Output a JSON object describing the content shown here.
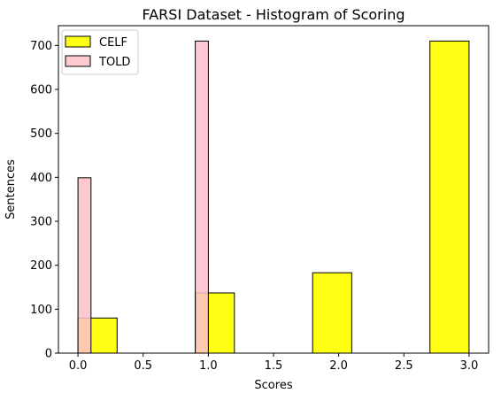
{
  "chart_data": {
    "type": "bar",
    "title": "FARSI Dataset - Histogram of Scoring",
    "xlabel": "Scores",
    "ylabel": "Sentences",
    "xlim": [
      -0.15,
      3.15
    ],
    "ylim": [
      0,
      745
    ],
    "xticks": [
      0.0,
      0.5,
      1.0,
      1.5,
      2.0,
      2.5,
      3.0
    ],
    "xtick_labels": [
      "0.0",
      "0.5",
      "1.0",
      "1.5",
      "2.0",
      "2.5",
      "3.0"
    ],
    "yticks": [
      0,
      100,
      200,
      300,
      400,
      500,
      600,
      700
    ],
    "ytick_labels": [
      "0",
      "100",
      "200",
      "300",
      "400",
      "500",
      "600",
      "700"
    ],
    "grid": false,
    "legend_position": "top-left",
    "series": [
      {
        "name": "CELF",
        "color": "#ffff14",
        "alpha": 1.0,
        "bins": [
          {
            "x0": 0.0,
            "x1": 0.3,
            "value": 80
          },
          {
            "x0": 0.3,
            "x1": 0.6,
            "value": 0
          },
          {
            "x0": 0.6,
            "x1": 0.9,
            "value": 0
          },
          {
            "x0": 0.9,
            "x1": 1.2,
            "value": 137
          },
          {
            "x0": 1.2,
            "x1": 1.5,
            "value": 0
          },
          {
            "x0": 1.5,
            "x1": 1.8,
            "value": 0
          },
          {
            "x0": 1.8,
            "x1": 2.1,
            "value": 183
          },
          {
            "x0": 2.1,
            "x1": 2.4,
            "value": 0
          },
          {
            "x0": 2.4,
            "x1": 2.7,
            "value": 0
          },
          {
            "x0": 2.7,
            "x1": 3.0,
            "value": 710
          }
        ]
      },
      {
        "name": "TOLD",
        "color": "#ffc0cb",
        "alpha": 0.85,
        "bins": [
          {
            "x0": 0.0,
            "x1": 0.1,
            "value": 399
          },
          {
            "x0": 0.9,
            "x1": 1.0,
            "value": 710
          }
        ]
      }
    ]
  }
}
